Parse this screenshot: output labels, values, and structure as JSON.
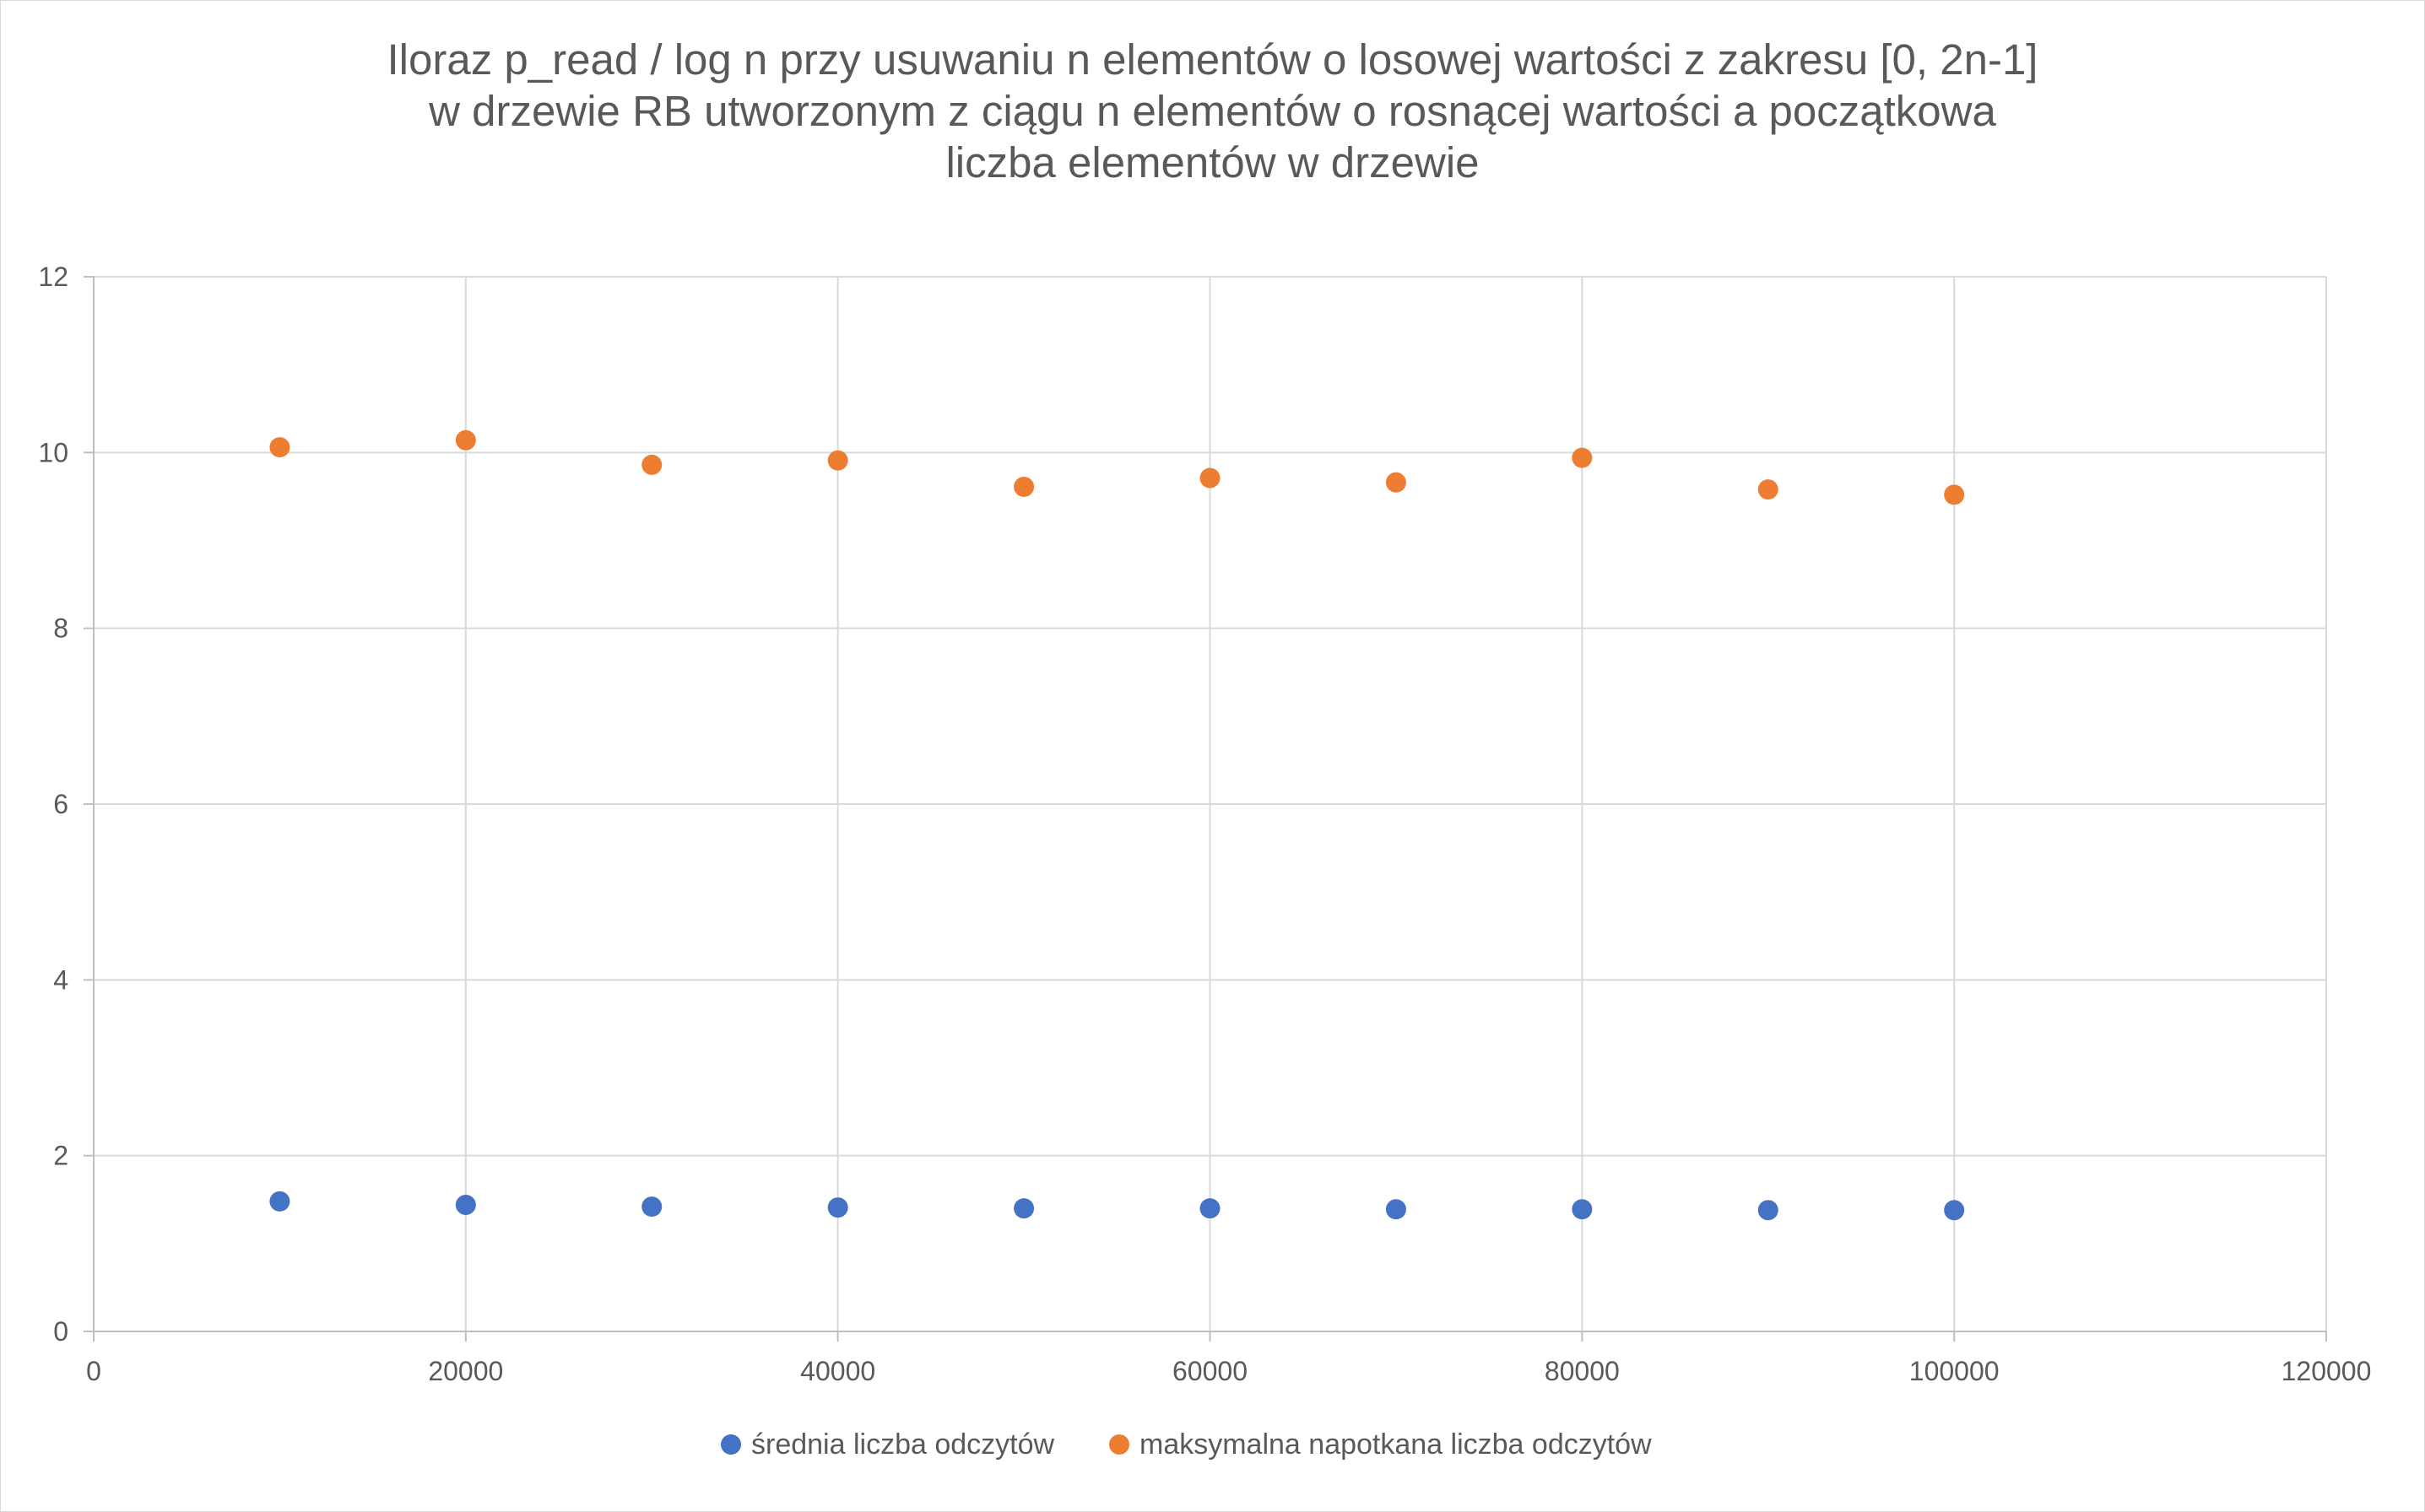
{
  "chart_data": {
    "type": "scatter",
    "title_lines": [
      "Iloraz p_read / log n przy usuwaniu n elementów o losowej wartości z zakresu [0, 2n-1]",
      "w drzewie RB utworzonym z ciągu n elementów o rosnącej wartości a początkowa",
      "liczba elementów w drzewie"
    ],
    "xlabel": "",
    "ylabel": "",
    "xlim": [
      0,
      120000
    ],
    "ylim": [
      0,
      12
    ],
    "xticks": [
      0,
      20000,
      40000,
      60000,
      80000,
      100000,
      120000
    ],
    "yticks": [
      0,
      2,
      4,
      6,
      8,
      10,
      12
    ],
    "grid": true,
    "legend_position": "bottom",
    "x": [
      10000,
      20000,
      30000,
      40000,
      50000,
      60000,
      70000,
      80000,
      90000,
      100000
    ],
    "series": [
      {
        "name": "średnia liczba odczytów",
        "color": "#4472c4",
        "values": [
          1.48,
          1.44,
          1.42,
          1.41,
          1.4,
          1.4,
          1.39,
          1.39,
          1.38,
          1.38
        ]
      },
      {
        "name": "maksymalna napotkana liczba odczytów",
        "color": "#ed7d31",
        "values": [
          10.06,
          10.14,
          9.86,
          9.91,
          9.61,
          9.71,
          9.66,
          9.94,
          9.58,
          9.52
        ]
      }
    ]
  }
}
